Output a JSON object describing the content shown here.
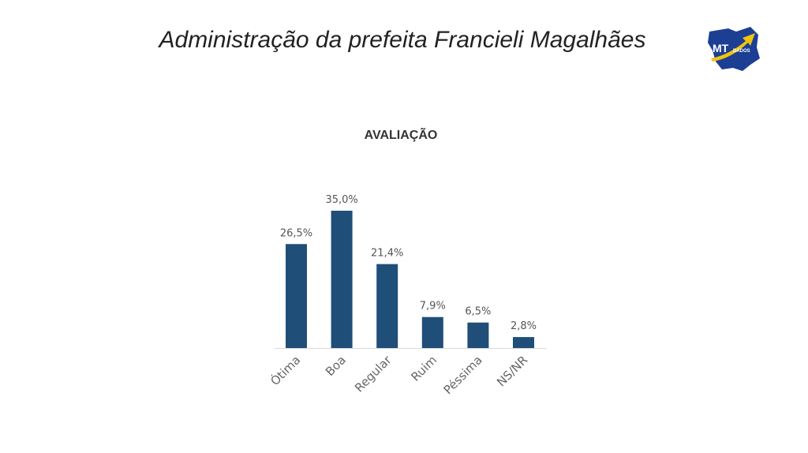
{
  "page": {
    "title": "Administração da prefeita Francieli Magalhães",
    "logo_text": "MT",
    "logo_subtext": "DADOS"
  },
  "colors": {
    "bar": "#1f4e79",
    "axis": "#d9d9d9",
    "logo_blue": "#1c3f94",
    "logo_yellow": "#f2c40f"
  },
  "chart_data": {
    "type": "bar",
    "title": "AVALIAÇÃO",
    "categories": [
      "Ótima",
      "Boa",
      "Regular",
      "Ruim",
      "Péssima",
      "NS/NR"
    ],
    "values": [
      26.5,
      35.0,
      21.4,
      7.9,
      6.5,
      2.8
    ],
    "value_labels": [
      "26,5%",
      "35,0%",
      "21,4%",
      "7,9%",
      "6,5%",
      "2,8%"
    ],
    "xlabel": "",
    "ylabel": "",
    "ylim": [
      0,
      35
    ],
    "grid": false,
    "legend": "none"
  }
}
